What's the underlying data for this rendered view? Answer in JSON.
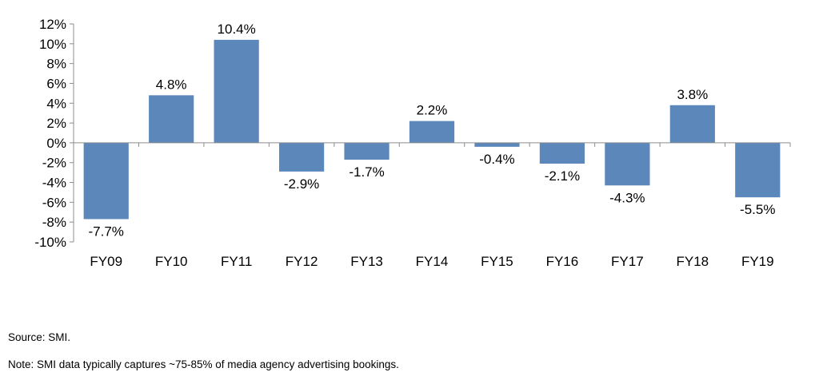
{
  "chart_data": {
    "type": "bar",
    "title": "",
    "xlabel": "",
    "ylabel": "",
    "categories": [
      "FY09",
      "FY10",
      "FY11",
      "FY12",
      "FY13",
      "FY14",
      "FY15",
      "FY16",
      "FY17",
      "FY18",
      "FY19"
    ],
    "values": [
      -7.7,
      4.8,
      10.4,
      -2.9,
      -1.7,
      2.2,
      -0.4,
      -2.1,
      -4.3,
      3.8,
      -5.5
    ],
    "data_labels": [
      "-7.7%",
      "4.8%",
      "10.4%",
      "-2.9%",
      "-1.7%",
      "2.2%",
      "-0.4%",
      "-2.1%",
      "-4.3%",
      "3.8%",
      "-5.5%"
    ],
    "ylim": [
      -10,
      12
    ],
    "yticks": [
      12,
      10,
      8,
      6,
      4,
      2,
      0,
      -2,
      -4,
      -6,
      -8,
      -10
    ],
    "ytick_labels": [
      "12%",
      "10%",
      "8%",
      "6%",
      "4%",
      "2%",
      "0%",
      "-2%",
      "-4%",
      "-6%",
      "-8%",
      "-10%"
    ],
    "grid": false,
    "legend": "none",
    "bar_color": "#5b87bb",
    "axis_color": "#8c8c8c"
  },
  "notes": {
    "source": "Source: SMI.",
    "note": "Note: SMI data typically captures ~75-85% of media agency advertising bookings."
  }
}
